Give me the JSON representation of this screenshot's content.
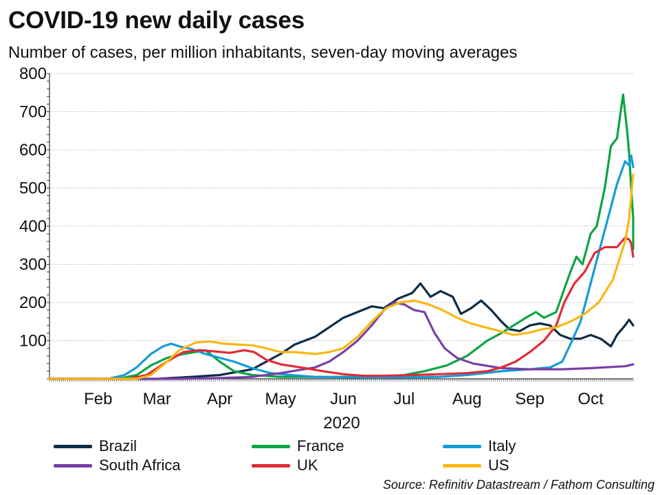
{
  "chart_data": {
    "type": "line",
    "title": "COVID-19 new daily cases",
    "subtitle": "Number of cases, per million inhabitants, seven-day moving averages",
    "xlabel": "2020",
    "ylabel": "",
    "source": "Source: Refinitiv Datastream / Fathom Consulting",
    "ylim": [
      0,
      800
    ],
    "y_ticks": [
      "100",
      "200",
      "300",
      "400",
      "500",
      "600",
      "700",
      "800"
    ],
    "x_range": [
      "2020-01-22",
      "2020-11-05"
    ],
    "x_ticks": [
      "Feb",
      "Mar",
      "Apr",
      "May",
      "Jun",
      "Jul",
      "Aug",
      "Sep",
      "Oct"
    ],
    "grid": "horizontal-dotted",
    "legend_position": "bottom",
    "series": [
      {
        "name": "Brazil",
        "color": "#0d2b45",
        "points": [
          [
            "2020-01-22",
            0
          ],
          [
            "2020-03-15",
            0
          ],
          [
            "2020-04-01",
            5
          ],
          [
            "2020-04-15",
            10
          ],
          [
            "2020-05-01",
            25
          ],
          [
            "2020-05-08",
            45
          ],
          [
            "2020-05-15",
            65
          ],
          [
            "2020-05-22",
            90
          ],
          [
            "2020-06-01",
            110
          ],
          [
            "2020-06-08",
            135
          ],
          [
            "2020-06-15",
            160
          ],
          [
            "2020-06-22",
            175
          ],
          [
            "2020-06-29",
            190
          ],
          [
            "2020-07-05",
            185
          ],
          [
            "2020-07-12",
            210
          ],
          [
            "2020-07-19",
            225
          ],
          [
            "2020-07-23",
            250
          ],
          [
            "2020-07-28",
            215
          ],
          [
            "2020-08-02",
            230
          ],
          [
            "2020-08-08",
            215
          ],
          [
            "2020-08-12",
            170
          ],
          [
            "2020-08-17",
            185
          ],
          [
            "2020-08-22",
            205
          ],
          [
            "2020-08-27",
            180
          ],
          [
            "2020-09-01",
            150
          ],
          [
            "2020-09-05",
            130
          ],
          [
            "2020-09-10",
            125
          ],
          [
            "2020-09-15",
            140
          ],
          [
            "2020-09-20",
            145
          ],
          [
            "2020-09-25",
            140
          ],
          [
            "2020-09-30",
            115
          ],
          [
            "2020-10-05",
            105
          ],
          [
            "2020-10-10",
            105
          ],
          [
            "2020-10-15",
            115
          ],
          [
            "2020-10-20",
            105
          ],
          [
            "2020-10-25",
            85
          ],
          [
            "2020-10-28",
            115
          ],
          [
            "2020-11-01",
            140
          ],
          [
            "2020-11-03",
            155
          ],
          [
            "2020-11-05",
            140
          ]
        ]
      },
      {
        "name": "France",
        "color": "#0aa542",
        "points": [
          [
            "2020-01-22",
            0
          ],
          [
            "2020-02-25",
            0
          ],
          [
            "2020-03-05",
            10
          ],
          [
            "2020-03-12",
            35
          ],
          [
            "2020-03-20",
            55
          ],
          [
            "2020-03-28",
            65
          ],
          [
            "2020-04-03",
            70
          ],
          [
            "2020-04-08",
            75
          ],
          [
            "2020-04-15",
            45
          ],
          [
            "2020-04-22",
            20
          ],
          [
            "2020-05-01",
            10
          ],
          [
            "2020-05-15",
            5
          ],
          [
            "2020-06-01",
            5
          ],
          [
            "2020-07-01",
            5
          ],
          [
            "2020-07-15",
            10
          ],
          [
            "2020-07-25",
            20
          ],
          [
            "2020-08-05",
            35
          ],
          [
            "2020-08-15",
            60
          ],
          [
            "2020-08-25",
            100
          ],
          [
            "2020-09-01",
            120
          ],
          [
            "2020-09-07",
            140
          ],
          [
            "2020-09-13",
            160
          ],
          [
            "2020-09-18",
            175
          ],
          [
            "2020-09-22",
            160
          ],
          [
            "2020-09-28",
            175
          ],
          [
            "2020-10-01",
            220
          ],
          [
            "2020-10-05",
            280
          ],
          [
            "2020-10-08",
            320
          ],
          [
            "2020-10-11",
            300
          ],
          [
            "2020-10-15",
            380
          ],
          [
            "2020-10-18",
            400
          ],
          [
            "2020-10-22",
            500
          ],
          [
            "2020-10-25",
            610
          ],
          [
            "2020-10-28",
            630
          ],
          [
            "2020-10-31",
            745
          ],
          [
            "2020-11-02",
            650
          ],
          [
            "2020-11-03",
            590
          ],
          [
            "2020-11-04",
            500
          ],
          [
            "2020-11-05",
            420
          ],
          [
            "2020-11-05",
            390
          ],
          [
            "2020-11-05",
            340
          ]
        ]
      },
      {
        "name": "Italy",
        "color": "#149bd7",
        "points": [
          [
            "2020-01-22",
            0
          ],
          [
            "2020-02-20",
            0
          ],
          [
            "2020-02-28",
            10
          ],
          [
            "2020-03-05",
            30
          ],
          [
            "2020-03-12",
            65
          ],
          [
            "2020-03-18",
            85
          ],
          [
            "2020-03-22",
            92
          ],
          [
            "2020-03-26",
            85
          ],
          [
            "2020-04-01",
            78
          ],
          [
            "2020-04-08",
            65
          ],
          [
            "2020-04-15",
            55
          ],
          [
            "2020-04-22",
            45
          ],
          [
            "2020-05-01",
            28
          ],
          [
            "2020-05-10",
            15
          ],
          [
            "2020-05-20",
            10
          ],
          [
            "2020-06-01",
            5
          ],
          [
            "2020-07-01",
            3
          ],
          [
            "2020-08-01",
            5
          ],
          [
            "2020-08-15",
            10
          ],
          [
            "2020-09-01",
            20
          ],
          [
            "2020-09-15",
            25
          ],
          [
            "2020-09-25",
            30
          ],
          [
            "2020-10-01",
            45
          ],
          [
            "2020-10-05",
            90
          ],
          [
            "2020-10-10",
            150
          ],
          [
            "2020-10-15",
            250
          ],
          [
            "2020-10-20",
            350
          ],
          [
            "2020-10-25",
            450
          ],
          [
            "2020-10-28",
            510
          ],
          [
            "2020-11-01",
            570
          ],
          [
            "2020-11-03",
            560
          ],
          [
            "2020-11-04",
            585
          ],
          [
            "2020-11-05",
            555
          ]
        ]
      },
      {
        "name": "South Africa",
        "color": "#7a3fa6",
        "points": [
          [
            "2020-01-22",
            0
          ],
          [
            "2020-03-25",
            0
          ],
          [
            "2020-04-15",
            2
          ],
          [
            "2020-05-01",
            5
          ],
          [
            "2020-05-15",
            15
          ],
          [
            "2020-06-01",
            30
          ],
          [
            "2020-06-08",
            45
          ],
          [
            "2020-06-15",
            70
          ],
          [
            "2020-06-22",
            100
          ],
          [
            "2020-06-29",
            140
          ],
          [
            "2020-07-05",
            180
          ],
          [
            "2020-07-10",
            200
          ],
          [
            "2020-07-15",
            195
          ],
          [
            "2020-07-20",
            180
          ],
          [
            "2020-07-25",
            175
          ],
          [
            "2020-07-30",
            120
          ],
          [
            "2020-08-04",
            80
          ],
          [
            "2020-08-10",
            55
          ],
          [
            "2020-08-18",
            40
          ],
          [
            "2020-09-01",
            28
          ],
          [
            "2020-09-15",
            25
          ],
          [
            "2020-10-01",
            25
          ],
          [
            "2020-10-15",
            28
          ],
          [
            "2020-11-01",
            33
          ],
          [
            "2020-11-05",
            38
          ]
        ]
      },
      {
        "name": "UK",
        "color": "#e02b35",
        "points": [
          [
            "2020-01-22",
            0
          ],
          [
            "2020-03-01",
            0
          ],
          [
            "2020-03-10",
            10
          ],
          [
            "2020-03-20",
            45
          ],
          [
            "2020-03-28",
            70
          ],
          [
            "2020-04-05",
            75
          ],
          [
            "2020-04-12",
            72
          ],
          [
            "2020-04-20",
            68
          ],
          [
            "2020-04-27",
            75
          ],
          [
            "2020-05-02",
            70
          ],
          [
            "2020-05-08",
            50
          ],
          [
            "2020-05-15",
            38
          ],
          [
            "2020-05-25",
            30
          ],
          [
            "2020-06-05",
            20
          ],
          [
            "2020-06-15",
            12
          ],
          [
            "2020-06-25",
            8
          ],
          [
            "2020-07-05",
            8
          ],
          [
            "2020-07-20",
            10
          ],
          [
            "2020-08-01",
            12
          ],
          [
            "2020-08-15",
            15
          ],
          [
            "2020-08-25",
            20
          ],
          [
            "2020-09-01",
            30
          ],
          [
            "2020-09-08",
            45
          ],
          [
            "2020-09-15",
            70
          ],
          [
            "2020-09-22",
            100
          ],
          [
            "2020-09-28",
            140
          ],
          [
            "2020-10-02",
            200
          ],
          [
            "2020-10-07",
            250
          ],
          [
            "2020-10-12",
            280
          ],
          [
            "2020-10-17",
            330
          ],
          [
            "2020-10-22",
            345
          ],
          [
            "2020-10-28",
            345
          ],
          [
            "2020-11-01",
            370
          ],
          [
            "2020-11-03",
            365
          ],
          [
            "2020-11-04",
            355
          ],
          [
            "2020-11-05",
            320
          ]
        ]
      },
      {
        "name": "US",
        "color": "#f9b715",
        "points": [
          [
            "2020-01-22",
            0
          ],
          [
            "2020-03-05",
            0
          ],
          [
            "2020-03-12",
            10
          ],
          [
            "2020-03-19",
            40
          ],
          [
            "2020-03-26",
            75
          ],
          [
            "2020-04-03",
            95
          ],
          [
            "2020-04-10",
            98
          ],
          [
            "2020-04-17",
            92
          ],
          [
            "2020-04-24",
            90
          ],
          [
            "2020-05-01",
            88
          ],
          [
            "2020-05-08",
            80
          ],
          [
            "2020-05-15",
            70
          ],
          [
            "2020-05-22",
            70
          ],
          [
            "2020-06-01",
            65
          ],
          [
            "2020-06-08",
            70
          ],
          [
            "2020-06-15",
            80
          ],
          [
            "2020-06-22",
            110
          ],
          [
            "2020-06-29",
            150
          ],
          [
            "2020-07-06",
            185
          ],
          [
            "2020-07-13",
            200
          ],
          [
            "2020-07-20",
            205
          ],
          [
            "2020-07-27",
            195
          ],
          [
            "2020-08-03",
            180
          ],
          [
            "2020-08-10",
            160
          ],
          [
            "2020-08-17",
            145
          ],
          [
            "2020-08-24",
            135
          ],
          [
            "2020-08-31",
            125
          ],
          [
            "2020-09-07",
            115
          ],
          [
            "2020-09-14",
            120
          ],
          [
            "2020-09-21",
            130
          ],
          [
            "2020-09-28",
            135
          ],
          [
            "2020-10-05",
            150
          ],
          [
            "2020-10-12",
            170
          ],
          [
            "2020-10-19",
            200
          ],
          [
            "2020-10-26",
            260
          ],
          [
            "2020-11-01",
            360
          ],
          [
            "2020-11-03",
            420
          ],
          [
            "2020-11-04",
            480
          ],
          [
            "2020-11-05",
            535
          ]
        ]
      }
    ]
  }
}
